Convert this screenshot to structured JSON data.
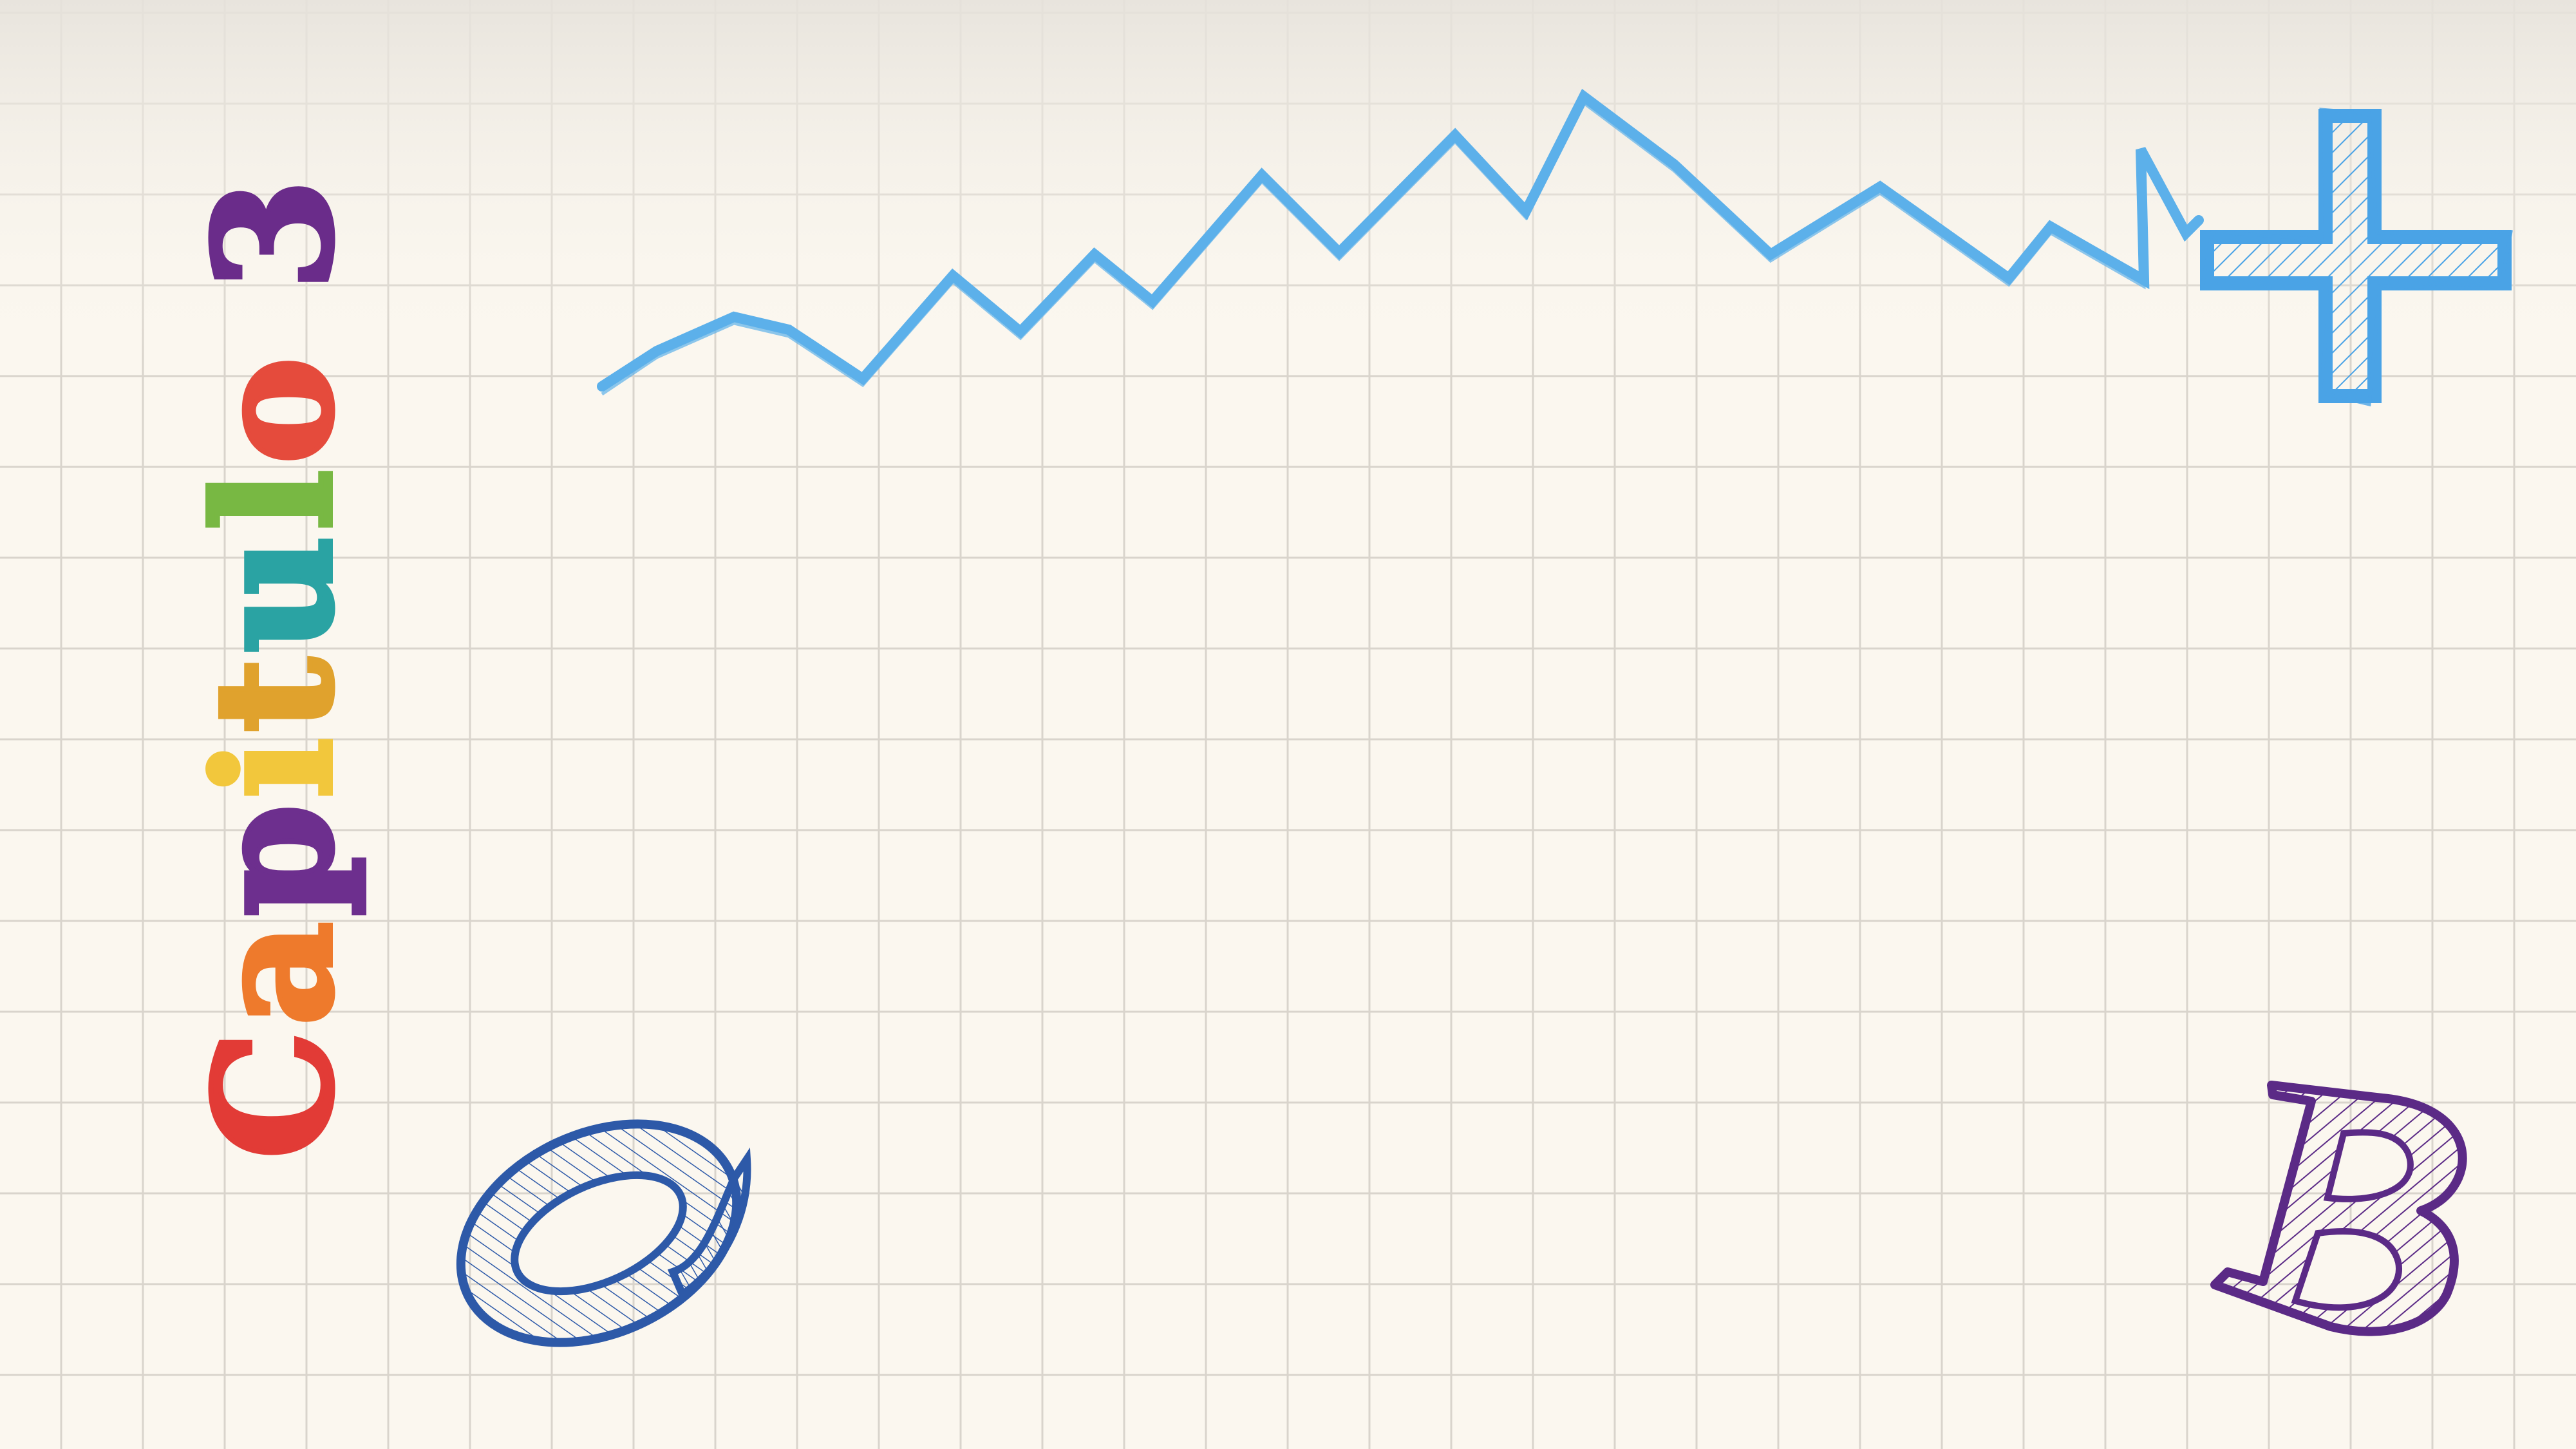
{
  "chapter": {
    "letters": [
      {
        "char": "C",
        "color": "#e23b36"
      },
      {
        "char": "a",
        "color": "#ee7a2c"
      },
      {
        "char": "p",
        "color": "#6d2f8e"
      },
      {
        "char": "i",
        "color": "#f2c73c"
      },
      {
        "char": "t",
        "color": "#e0a22d"
      },
      {
        "char": "u",
        "color": "#2aa3a3"
      },
      {
        "char": "l",
        "color": "#78b843"
      },
      {
        "char": "o",
        "color": "#e54b3c"
      },
      {
        "char": " ",
        "color": "#000000"
      },
      {
        "char": "3",
        "color": "#6a2c8a"
      }
    ]
  },
  "decorations": {
    "q_letter": {
      "char": "Q",
      "color": "#2d59a8"
    },
    "b_letter": {
      "char": "B",
      "color": "#5b2a86"
    },
    "plus_icon": {
      "color": "#4aa3e6"
    },
    "zigzag_line": {
      "color": "#5cb0ea"
    }
  },
  "grid": {
    "color": "#d9d4cc",
    "background": "#fbf7ef"
  }
}
